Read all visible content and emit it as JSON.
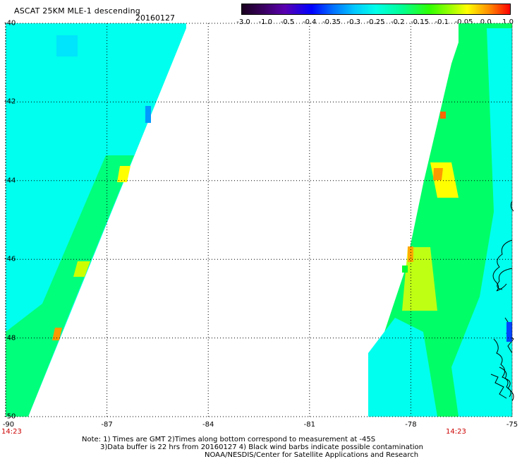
{
  "header": {
    "title": "ASCAT 25KM MLE-1 descending",
    "date": "20160127"
  },
  "colorbar": {
    "labels": [
      "-3.0",
      "-1.0",
      "-0.5",
      "-0.4",
      "-0.35",
      "-0.3",
      "-0.25",
      "-0.2",
      "-0.15",
      "-0.1",
      "-0.05",
      "0.0",
      "1.0"
    ]
  },
  "axes": {
    "lat_labels": [
      "-40",
      "-42",
      "-44",
      "-46",
      "-48",
      "-50"
    ],
    "lon_labels": [
      "-90",
      "-87",
      "-84",
      "-81",
      "-78",
      "-75"
    ]
  },
  "times": {
    "left": "14:23",
    "right": "14:23"
  },
  "notes": {
    "line1": "Note: 1) Times are GMT 2)Times along bottom correspond to measurement at -45S",
    "line2": "3)Data buffer is 22 hrs from 20160127 4) Black wind barbs indicate possible contamination",
    "line3": "NOAA/NESDIS/Center for Satellite Applications and Research"
  },
  "colors": {
    "swath_base": "#00ffee",
    "swath_mid": "#00ff66",
    "swath_high": "#ffff00",
    "anomaly": "#ff8800",
    "grid": "#000000",
    "time_label": "#cc0000"
  }
}
